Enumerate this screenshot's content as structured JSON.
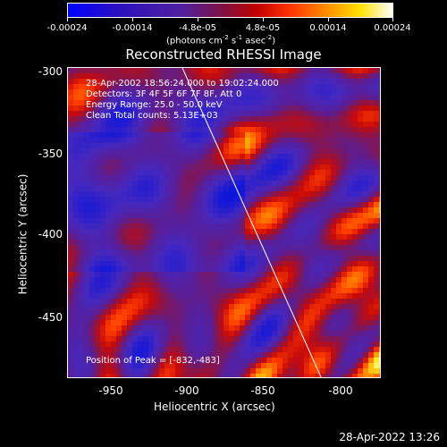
{
  "colorbar": {
    "ticks": [
      "-0.00024",
      "-0.00014",
      "-4.8e-05",
      "4.8e-05",
      "0.00014",
      "0.00024"
    ],
    "units_prefix": "(photons cm",
    "units_sup1": "-2",
    "units_mid": " s",
    "units_sup2": "-1",
    "units_mid2": " asec",
    "units_sup3": "-2",
    "units_suffix": ")"
  },
  "title": "Reconstructed RHESSI Image",
  "info": {
    "time_range": "28-Apr-2002 18:56:24.000 to 19:02:24.000",
    "detectors": "Detectors: 3F 4F 5F 6F 7F 8F, Att 0",
    "energy": "Energy Range: 25.0 - 50.0 keV",
    "clean": "Clean    Total counts: 5.13E+03",
    "peak": "Position of Peak = [-832,-483]"
  },
  "axes": {
    "xlabel": "Heliocentric X (arcsec)",
    "ylabel": "Heliocentric Y (arcsec)",
    "xticks": [
      "-950",
      "-900",
      "-850",
      "-800"
    ],
    "yticks": [
      "-300",
      "-350",
      "-400",
      "-450"
    ]
  },
  "timestamp": "28-Apr-2022 13:26",
  "colors": {
    "bg": "#000000",
    "fg": "#ffffff"
  }
}
